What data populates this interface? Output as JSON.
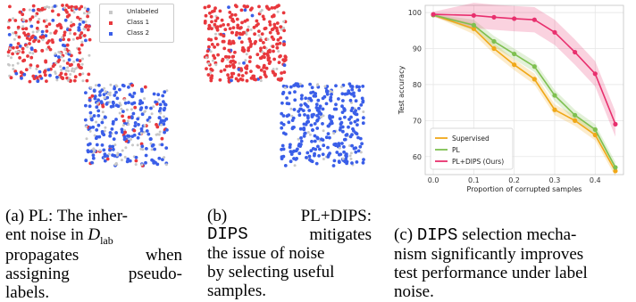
{
  "legend_a": {
    "unlabeled": "Unlabeled",
    "class1": "Class 1",
    "class2": "Class 2"
  },
  "colors": {
    "unlabeled": "#c8c8c8",
    "class1": "#e8383d",
    "class2": "#3a5ee8",
    "supervised": "#f0a818",
    "pl": "#7ec050",
    "pldips": "#e8306e"
  },
  "captions": {
    "a": {
      "label": "(a)",
      "l1_rest": "PL: The inher-",
      "l2_pre": "ent noise in ",
      "l2_math": "D",
      "l2_sub": "lab",
      "l3a": "propagates",
      "l3b": "when",
      "l4a": "assigning",
      "l4b": "pseudo-",
      "l5": "labels."
    },
    "b": {
      "label": "(b)",
      "l1_rest": "PL+DIPS:",
      "l2a": "DIPS",
      "l2b": "mitigates",
      "l3": "the issue of noise",
      "l4": "by selecting useful",
      "l5": "samples."
    },
    "c": {
      "l2_label": "(c)",
      "l2_mono": "DIPS",
      "l2_rest": "selection mecha-",
      "l3": "nism significantly improves",
      "l4": "test performance under label",
      "l5": "noise."
    }
  },
  "chart_data": [
    {
      "type": "scatter",
      "panel": "a",
      "legend": [
        "Unlabeled",
        "Class 1",
        "Class 2"
      ],
      "note": "two square clusters of points"
    },
    {
      "type": "scatter",
      "panel": "b",
      "note": "two square clusters of points"
    },
    {
      "type": "line",
      "panel": "c",
      "xlabel": "Proportion of corrupted samples",
      "ylabel": "Test accuracy",
      "x": [
        0.0,
        0.1,
        0.15,
        0.2,
        0.25,
        0.3,
        0.35,
        0.4,
        0.45
      ],
      "xlim": [
        -0.02,
        0.47
      ],
      "ylim": [
        55,
        102
      ],
      "xticks": [
        "0.0",
        "0.1",
        "0.2",
        "0.3",
        "0.4"
      ],
      "yticks": [
        "60",
        "70",
        "80",
        "90",
        "100"
      ],
      "grid": true,
      "legend_position": "bottom-left",
      "series": [
        {
          "name": "Supervised",
          "values": [
            99.3,
            95.5,
            90.0,
            85.5,
            81.5,
            73.0,
            70.0,
            66.0,
            56.0
          ],
          "band": 1.5
        },
        {
          "name": "PL",
          "values": [
            99.3,
            96.5,
            92.0,
            88.5,
            85.0,
            77.0,
            71.5,
            67.5,
            57.0
          ],
          "band": 1.5
        },
        {
          "name": "PL+DIPS (Ours)",
          "values": [
            99.5,
            99.2,
            98.7,
            98.3,
            98.0,
            94.5,
            89.0,
            83.0,
            69.0
          ],
          "band": 3.5
        }
      ]
    }
  ]
}
